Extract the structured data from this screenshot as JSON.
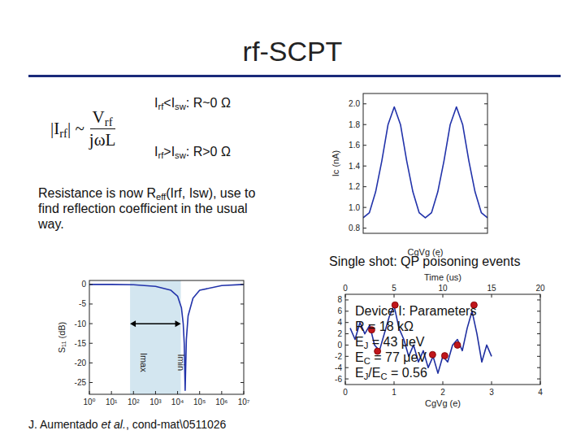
{
  "slide": {
    "title": "rf-SCPT",
    "formula": {
      "lhs": [
        "|I",
        {
          "sub": "rf"
        },
        "| ~"
      ],
      "numerator": [
        "V",
        {
          "sub": "rf"
        }
      ],
      "denominator": [
        "jωL"
      ]
    },
    "conditions": [
      [
        "I",
        {
          "sub": "rf"
        },
        "<I",
        {
          "sub": "sw"
        },
        ": R~0 Ω"
      ],
      [
        "I",
        {
          "sub": "rf"
        },
        ">I",
        {
          "sub": "sw"
        },
        ": R>0 Ω"
      ]
    ],
    "paragraph": [
      "Resistance is now R",
      {
        "sub": "eff"
      },
      "(Irf, Isw), use to find reflection coefficient in the usual way."
    ],
    "caption": "Single shot: QP poisoning events",
    "parameters": [
      [
        "Device I: Parameters"
      ],
      [
        "R = 18 kΩ"
      ],
      [
        "E",
        {
          "sub": "J"
        },
        " = 43 μeV"
      ],
      [
        "E",
        {
          "sub": "C"
        },
        " = 77 μeV"
      ],
      [
        "E",
        {
          "sub": "J"
        },
        "/E",
        {
          "sub": "C"
        },
        " = 0.56"
      ]
    ],
    "citation": [
      "J. Aumentado ",
      {
        "i": "et al."
      },
      ", cond-mat\\0511026"
    ]
  },
  "chart_data": [
    {
      "type": "line",
      "y_label": "S₁₁ (dB)",
      "log": "x",
      "grid": false,
      "color": "#2233aa",
      "xlim": [
        1,
        10000000
      ],
      "xticks": [
        {
          "value": 1,
          "label": "10⁰"
        },
        {
          "value": 10,
          "label": "10¹"
        },
        {
          "value": 100,
          "label": "10²"
        },
        {
          "value": 1000,
          "label": "10³"
        },
        {
          "value": 10000,
          "label": "10⁴"
        },
        {
          "value": 100000,
          "label": "10⁵"
        },
        {
          "value": 1000000,
          "label": "10⁶"
        },
        {
          "value": 10000000,
          "label": "10⁷"
        }
      ],
      "ylim": [
        -28,
        1
      ],
      "yticks": [
        -25,
        -20,
        -15,
        -10,
        -5,
        0
      ],
      "x": [
        1,
        10,
        100,
        1000,
        5000,
        10000,
        15000,
        18000,
        20000,
        22000,
        25000,
        30000,
        50000,
        100000,
        1000000,
        10000000
      ],
      "values": [
        0,
        0,
        -0.1,
        -0.5,
        -1.5,
        -3,
        -6,
        -10,
        -15,
        -27,
        -14,
        -8,
        -3.5,
        -1.5,
        -0.3,
        0
      ],
      "annotations": [
        {
          "text": "Imax",
          "x": 70
        },
        {
          "text": "Imin",
          "x": 14000
        }
      ]
    },
    {
      "type": "line",
      "x_label": "CgVg (e)",
      "y_label": "Ic (nA)",
      "grid": false,
      "tick_labels": "y",
      "color": "#2233aa",
      "xlim": [
        0,
        2
      ],
      "ylim": [
        0.75,
        2.1
      ],
      "yticks": [
        0.8,
        {
          "value": 1,
          "label": "1.0"
        },
        1.2,
        1.4,
        1.6,
        1.8,
        {
          "value": 2,
          "label": "2.0"
        }
      ],
      "x": [
        0,
        0.1,
        0.2,
        0.3,
        0.4,
        0.5,
        0.6,
        0.7,
        0.8,
        0.9,
        1,
        1.1,
        1.2,
        1.3,
        1.4,
        1.5,
        1.6,
        1.7,
        1.8,
        1.9,
        2
      ],
      "values": [
        0.9,
        0.95,
        1.15,
        1.45,
        1.8,
        1.97,
        1.8,
        1.45,
        1.15,
        0.95,
        0.9,
        0.95,
        1.15,
        1.45,
        1.8,
        1.97,
        1.8,
        1.45,
        1.15,
        0.95,
        0.9
      ]
    },
    {
      "type": "line",
      "x_label": "CgVg (e)",
      "x2_label": "Time (us)",
      "grid": false,
      "xlim": [
        0,
        4
      ],
      "xticks": [
        0,
        1,
        2,
        3,
        4
      ],
      "x2lim": [
        0,
        20
      ],
      "x2ticks": [
        0,
        5,
        10,
        15,
        20
      ],
      "ylim": [
        -7,
        9
      ],
      "yticks": [
        -6,
        -4,
        -2,
        0,
        2,
        4,
        6,
        8
      ],
      "series": [
        {
          "type": "line",
          "color": "#1f2fa0",
          "x": [
            0.1,
            0.2,
            0.3,
            0.4,
            0.5,
            0.6,
            0.7,
            0.8,
            0.9,
            1,
            1.1,
            1.2,
            1.3,
            1.4,
            1.5,
            1.6,
            1.7,
            1.8,
            1.9,
            2,
            2.1,
            2.2,
            2.3,
            2.4,
            2.5,
            2.6,
            2.7,
            2.8,
            2.9,
            3
          ],
          "values": [
            3,
            1,
            4,
            2,
            3.5,
            0,
            -1,
            2,
            5,
            7,
            3,
            1,
            -2,
            0,
            -3,
            -1,
            -4,
            -2,
            -5,
            -2,
            -3,
            0,
            1,
            -1,
            3,
            6,
            2,
            -3,
            0,
            -2
          ]
        },
        {
          "type": "scatter",
          "marker": "circle",
          "color": "#c0161b",
          "x": [
            0.54,
            0.66,
            1.02,
            1.79,
            2.04,
            2.3,
            2.64
          ],
          "values": [
            2.7,
            -1.1,
            7.1,
            -1.7,
            -1.9,
            0,
            7.1
          ]
        }
      ]
    }
  ]
}
